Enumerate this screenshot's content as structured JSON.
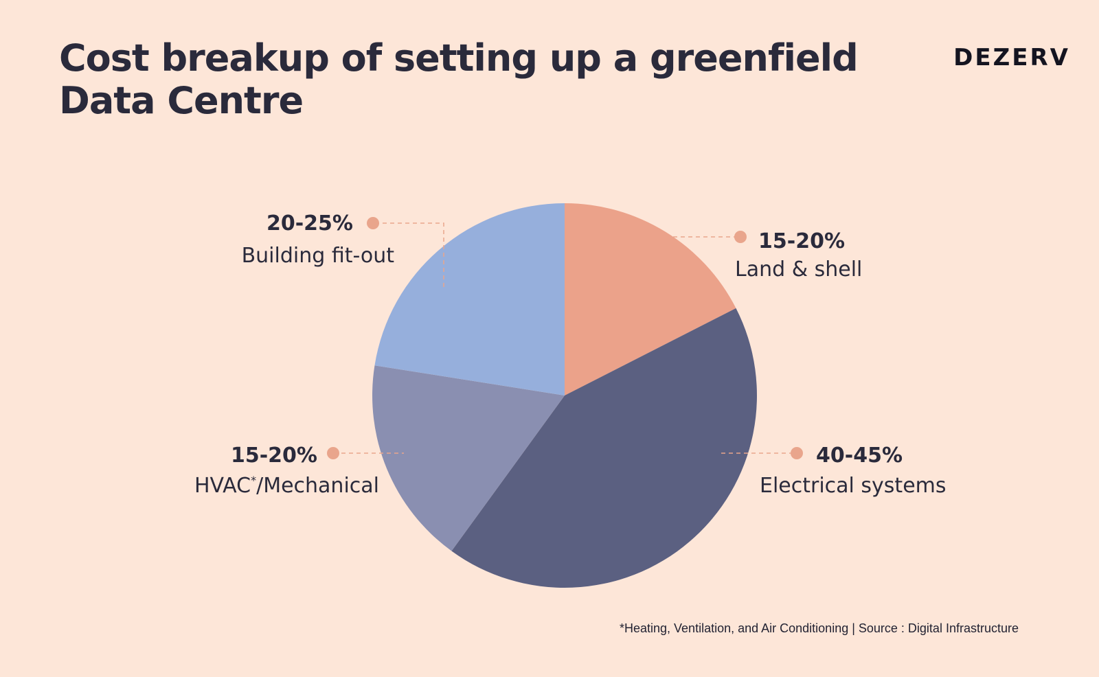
{
  "header": {
    "title": "Cost breakup of setting up a greenfield Data Centre",
    "brand": "DEZERV"
  },
  "footnote": "*Heating, Ventilation, and Air Conditioning | Source : Digital Infrastructure",
  "colors": {
    "background": "#fde6d8",
    "title": "#2a2a3b",
    "leader": "#e9a58c"
  },
  "chart_data": {
    "type": "pie",
    "title": "Cost breakup of setting up a greenfield Data Centre",
    "start_angle_deg": 0,
    "direction": "clockwise",
    "slices": [
      {
        "range": "15-20%",
        "label": "Land & shell",
        "sup": "",
        "label_tail": "",
        "value": 17.5,
        "color": "#eba28a"
      },
      {
        "range": "40-45%",
        "label": "Electrical systems",
        "sup": "",
        "label_tail": "",
        "value": 42.5,
        "color": "#5b6081"
      },
      {
        "range": "15-20%",
        "label": "HVAC",
        "sup": "*",
        "label_tail": "/Mechanical",
        "value": 17.5,
        "color": "#8a8fb1"
      },
      {
        "range": "20-25%",
        "label": "Building fit-out",
        "sup": "",
        "label_tail": "",
        "value": 22.5,
        "color": "#96afdc"
      }
    ]
  }
}
